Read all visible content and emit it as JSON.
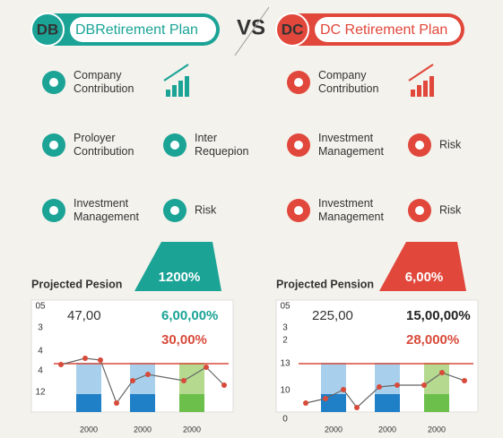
{
  "vs": "VS",
  "panels": [
    {
      "badge": "DB",
      "title": "DBRetirement Plan",
      "features": [
        {
          "lines": [
            "Company",
            "Contribution"
          ]
        },
        {
          "lines": [
            "Proloyer",
            "Contribution"
          ]
        },
        {
          "lines": [
            "Inter",
            "Requepion"
          ]
        },
        {
          "lines": [
            "Investment",
            "Management"
          ]
        },
        {
          "lines": [
            "Risk"
          ]
        }
      ],
      "chart_title": "Projected Pesion",
      "tag": "1200%",
      "axis_labels": [
        "05",
        "3",
        "4",
        "4",
        "12"
      ],
      "x_labels": [
        "2000",
        "2000",
        "2000"
      ],
      "stats": [
        "47,00",
        "6,00,00%",
        "30,00%"
      ]
    },
    {
      "badge": "DC",
      "title": "DC Retirement Plan",
      "features": [
        {
          "lines": [
            "Company",
            "Contribution"
          ]
        },
        {
          "lines": [
            "Investment",
            "Management"
          ]
        },
        {
          "lines": [
            "Risk"
          ]
        },
        {
          "lines": [
            "Investment",
            "Management"
          ]
        },
        {
          "lines": [
            "Risk"
          ]
        }
      ],
      "chart_title": "Projected Pension",
      "tag": "6,00%",
      "axis_labels": [
        "05",
        "3",
        "2",
        "13",
        "10",
        "0"
      ],
      "x_labels": [
        "2000",
        "2000",
        "2000"
      ],
      "stats": [
        "225,00",
        "15,00,00%",
        "28,000%"
      ]
    }
  ]
}
